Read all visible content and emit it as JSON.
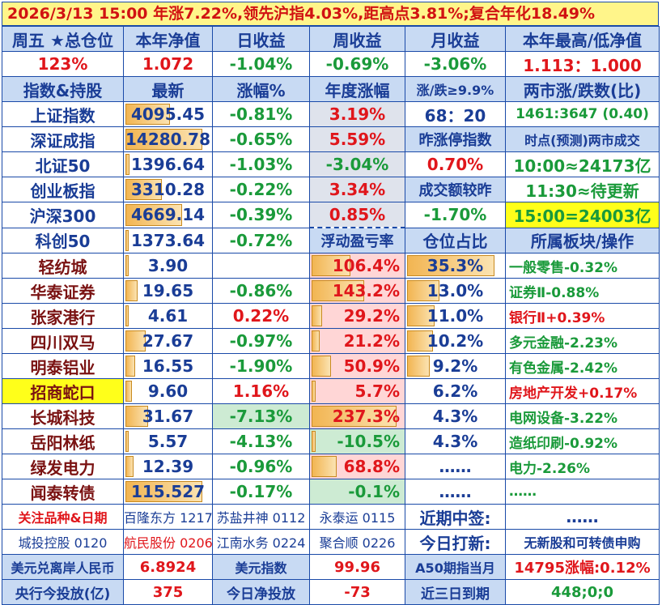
{
  "title": "2026/3/13   15:00 年涨7.22%,领先沪指4.03%,距高点3.81%;复合年化18.49%",
  "summary": {
    "headers": [
      "周五 ★总仓位",
      "本年净值",
      "日收益",
      "周收益",
      "月收益",
      "本年最高/低净值"
    ],
    "values": [
      "123%",
      "1.072",
      "-1.04%",
      "-0.69%",
      "-3.06%",
      "1.113：1.000"
    ]
  },
  "index_header": [
    "指数&持股",
    "最新",
    "涨幅%",
    "年度涨幅",
    "涨/跌≥9.9%",
    "两市涨/跌数(比)"
  ],
  "indices": [
    {
      "name": "上证指数",
      "last": "4095.45",
      "chg": "-0.81%",
      "ytd": "3.19%",
      "c5": "68：20",
      "c6": "1461:3647 (0.40)",
      "bar": 0.55
    },
    {
      "name": "深证成指",
      "last": "14280.78",
      "chg": "-0.65%",
      "ytd": "5.59%",
      "c5": "昨涨停指数",
      "c6": "时点(预测)两市成交",
      "bar": 0.95
    },
    {
      "name": "北证50",
      "last": "1396.64",
      "chg": "-1.03%",
      "ytd": "-3.04%",
      "c5": "0.70%",
      "c6": "10:00≈24173亿",
      "bar": 0.05
    },
    {
      "name": "创业板指",
      "last": "3310.28",
      "chg": "-0.22%",
      "ytd": "3.34%",
      "c5": "成交额较昨",
      "c6": "11:30≈待更新",
      "bar": 0.45
    },
    {
      "name": "沪深300",
      "last": "4669.14",
      "chg": "-0.39%",
      "ytd": "0.85%",
      "c5": "-1.70%",
      "c6": "15:00=24003亿",
      "bar": 0.7
    },
    {
      "name": "科创50",
      "last": "1373.64",
      "chg": "-0.72%",
      "ytd": "浮动盈亏率",
      "c5": "仓位占比",
      "c6": "所属板块/操作",
      "bar": 0.03
    }
  ],
  "holdings": [
    {
      "name": "轻纺城",
      "last": "3.90",
      "chg": "",
      "pl": "106.4%",
      "pos": "35.3%",
      "sector": "一般零售-0.32%",
      "lbar": 0.03,
      "plbar": 0.45,
      "posbar": 0.95
    },
    {
      "name": "华泰证券",
      "last": "19.65",
      "chg": "-0.86%",
      "pl": "143.2%",
      "pos": "13.0%",
      "sector": "证券Ⅱ-0.88%",
      "lbar": 0.15,
      "plbar": 0.6,
      "posbar": 0.35
    },
    {
      "name": "张家港行",
      "last": "4.61",
      "chg": "0.22%",
      "pl": "29.2%",
      "pos": "11.0%",
      "sector": "银行Ⅱ+0.39%",
      "lbar": 0.03,
      "plbar": 0.12,
      "posbar": 0.3
    },
    {
      "name": "四川双马",
      "last": "27.67",
      "chg": "-0.97%",
      "pl": "21.2%",
      "pos": "10.2%",
      "sector": "多元金融-2.23%",
      "lbar": 0.25,
      "plbar": 0.09,
      "posbar": 0.28
    },
    {
      "name": "明泰铝业",
      "last": "16.55",
      "chg": "-1.90%",
      "pl": "50.9%",
      "pos": "9.2%",
      "sector": "有色金属-2.42%",
      "lbar": 0.12,
      "plbar": 0.22,
      "posbar": 0.25
    },
    {
      "name": "招商蛇口",
      "last": "9.60",
      "chg": "1.16%",
      "pl": "5.7%",
      "pos": "6.2%",
      "sector": "房地产开发+0.17%",
      "lbar": 0.08,
      "plbar": 0.03,
      "posbar": 0.0
    },
    {
      "name": "长城科技",
      "last": "31.67",
      "chg": "-7.13%",
      "pl": "237.3%",
      "pos": "4.3%",
      "sector": "电网设备-3.22%",
      "lbar": 0.28,
      "plbar": 0.98,
      "posbar": 0.0
    },
    {
      "name": "岳阳林纸",
      "last": "5.57",
      "chg": "-4.13%",
      "pl": "-10.5%",
      "pos": "4.3%",
      "sector": "造纸印刷-0.92%",
      "lbar": 0.03,
      "plbar": 0.02,
      "posbar": 0.0
    },
    {
      "name": "绿发电力",
      "last": "12.39",
      "chg": "-0.96%",
      "pl": "68.8%",
      "pos": "……",
      "sector": "电力-2.26%",
      "lbar": 0.1,
      "plbar": 0.29,
      "posbar": 0.0
    },
    {
      "name": "闻泰转债",
      "last": "115.527",
      "chg": "-0.17%",
      "pl": "-0.1%",
      "pos": "……",
      "sector": "……",
      "lbar": 0.95,
      "plbar": 0.0,
      "posbar": 0.0
    }
  ],
  "watch": {
    "label": "关注品种&日期",
    "row1": [
      "百隆东方 1217",
      "苏盐井神 0112",
      "永泰运 0115",
      "近期中签:",
      "……"
    ],
    "row2": [
      "城投控股 0120",
      "航民股份 0206",
      "江南水务 0224",
      "聚合顺 0226",
      "今日打新:",
      "无新股和可转债申购"
    ]
  },
  "footer": {
    "row1": [
      "美元兑离岸人民币",
      "6.8924",
      "美元指数",
      "99.96",
      "A50期指当月",
      "14795涨幅:0.12%"
    ],
    "row2": [
      "央行今投放(亿)",
      "375",
      "今日净投放",
      "-73",
      "近三日到期",
      "448;0;0"
    ]
  }
}
